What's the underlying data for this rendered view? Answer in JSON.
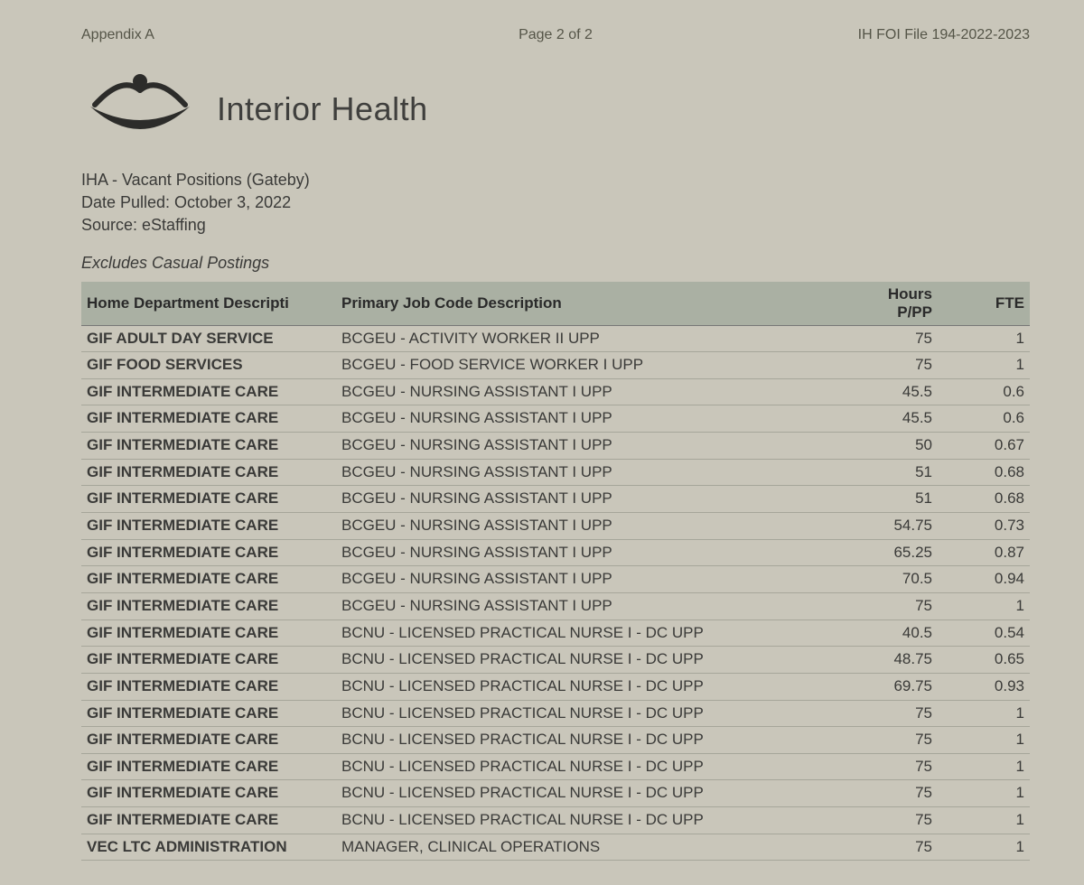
{
  "header": {
    "appendix": "Appendix A",
    "page": "Page 2 of 2",
    "file": "IH FOI File 194-2022-2023"
  },
  "brand": "Interior Health",
  "info": {
    "title": "IHA - Vacant Positions (Gateby)",
    "date": "Date Pulled: October 3, 2022",
    "source": "Source: eStaffing"
  },
  "excludes": "Excludes Casual Postings",
  "table": {
    "columns": {
      "dept": "Home Department Descripti",
      "job": "Primary Job Code Description",
      "hours": "Hours P/PP",
      "fte": "FTE"
    },
    "col_widths": {
      "dept": 270,
      "hours": 90,
      "fte": 90
    },
    "header_bg": "#aab0a3",
    "row_border": "#a6a69a",
    "font_size": 17,
    "rows": [
      {
        "dept": "GIF ADULT DAY SERVICE",
        "job": "BCGEU - ACTIVITY WORKER II UPP",
        "hours": "75",
        "fte": "1"
      },
      {
        "dept": "GIF FOOD SERVICES",
        "job": "BCGEU - FOOD SERVICE WORKER I UPP",
        "hours": "75",
        "fte": "1"
      },
      {
        "dept": "GIF INTERMEDIATE CARE",
        "job": "BCGEU - NURSING ASSISTANT I UPP",
        "hours": "45.5",
        "fte": "0.6"
      },
      {
        "dept": "GIF INTERMEDIATE CARE",
        "job": "BCGEU - NURSING ASSISTANT I UPP",
        "hours": "45.5",
        "fte": "0.6"
      },
      {
        "dept": "GIF INTERMEDIATE CARE",
        "job": "BCGEU - NURSING ASSISTANT I UPP",
        "hours": "50",
        "fte": "0.67"
      },
      {
        "dept": "GIF INTERMEDIATE CARE",
        "job": "BCGEU - NURSING ASSISTANT I UPP",
        "hours": "51",
        "fte": "0.68"
      },
      {
        "dept": "GIF INTERMEDIATE CARE",
        "job": "BCGEU - NURSING ASSISTANT I UPP",
        "hours": "51",
        "fte": "0.68"
      },
      {
        "dept": "GIF INTERMEDIATE CARE",
        "job": "BCGEU - NURSING ASSISTANT I UPP",
        "hours": "54.75",
        "fte": "0.73"
      },
      {
        "dept": "GIF INTERMEDIATE CARE",
        "job": "BCGEU - NURSING ASSISTANT I UPP",
        "hours": "65.25",
        "fte": "0.87"
      },
      {
        "dept": "GIF INTERMEDIATE CARE",
        "job": "BCGEU - NURSING ASSISTANT I UPP",
        "hours": "70.5",
        "fte": "0.94"
      },
      {
        "dept": "GIF INTERMEDIATE CARE",
        "job": "BCGEU - NURSING ASSISTANT I UPP",
        "hours": "75",
        "fte": "1"
      },
      {
        "dept": "GIF INTERMEDIATE CARE",
        "job": "BCNU - LICENSED PRACTICAL NURSE I - DC UPP",
        "hours": "40.5",
        "fte": "0.54"
      },
      {
        "dept": "GIF INTERMEDIATE CARE",
        "job": "BCNU - LICENSED PRACTICAL NURSE I - DC UPP",
        "hours": "48.75",
        "fte": "0.65"
      },
      {
        "dept": "GIF INTERMEDIATE CARE",
        "job": "BCNU - LICENSED PRACTICAL NURSE I - DC UPP",
        "hours": "69.75",
        "fte": "0.93"
      },
      {
        "dept": "GIF INTERMEDIATE CARE",
        "job": "BCNU - LICENSED PRACTICAL NURSE I - DC UPP",
        "hours": "75",
        "fte": "1"
      },
      {
        "dept": "GIF INTERMEDIATE CARE",
        "job": "BCNU - LICENSED PRACTICAL NURSE I - DC UPP",
        "hours": "75",
        "fte": "1"
      },
      {
        "dept": "GIF INTERMEDIATE CARE",
        "job": "BCNU - LICENSED PRACTICAL NURSE I - DC UPP",
        "hours": "75",
        "fte": "1"
      },
      {
        "dept": "GIF INTERMEDIATE CARE",
        "job": "BCNU - LICENSED PRACTICAL NURSE I - DC UPP",
        "hours": "75",
        "fte": "1"
      },
      {
        "dept": "GIF INTERMEDIATE CARE",
        "job": "BCNU - LICENSED PRACTICAL NURSE I - DC UPP",
        "hours": "75",
        "fte": "1"
      },
      {
        "dept": "VEC LTC ADMINISTRATION",
        "job": "MANAGER, CLINICAL OPERATIONS",
        "hours": "75",
        "fte": "1"
      }
    ]
  },
  "colors": {
    "page_bg": "#c9c6ba",
    "text": "#3a3a38"
  }
}
